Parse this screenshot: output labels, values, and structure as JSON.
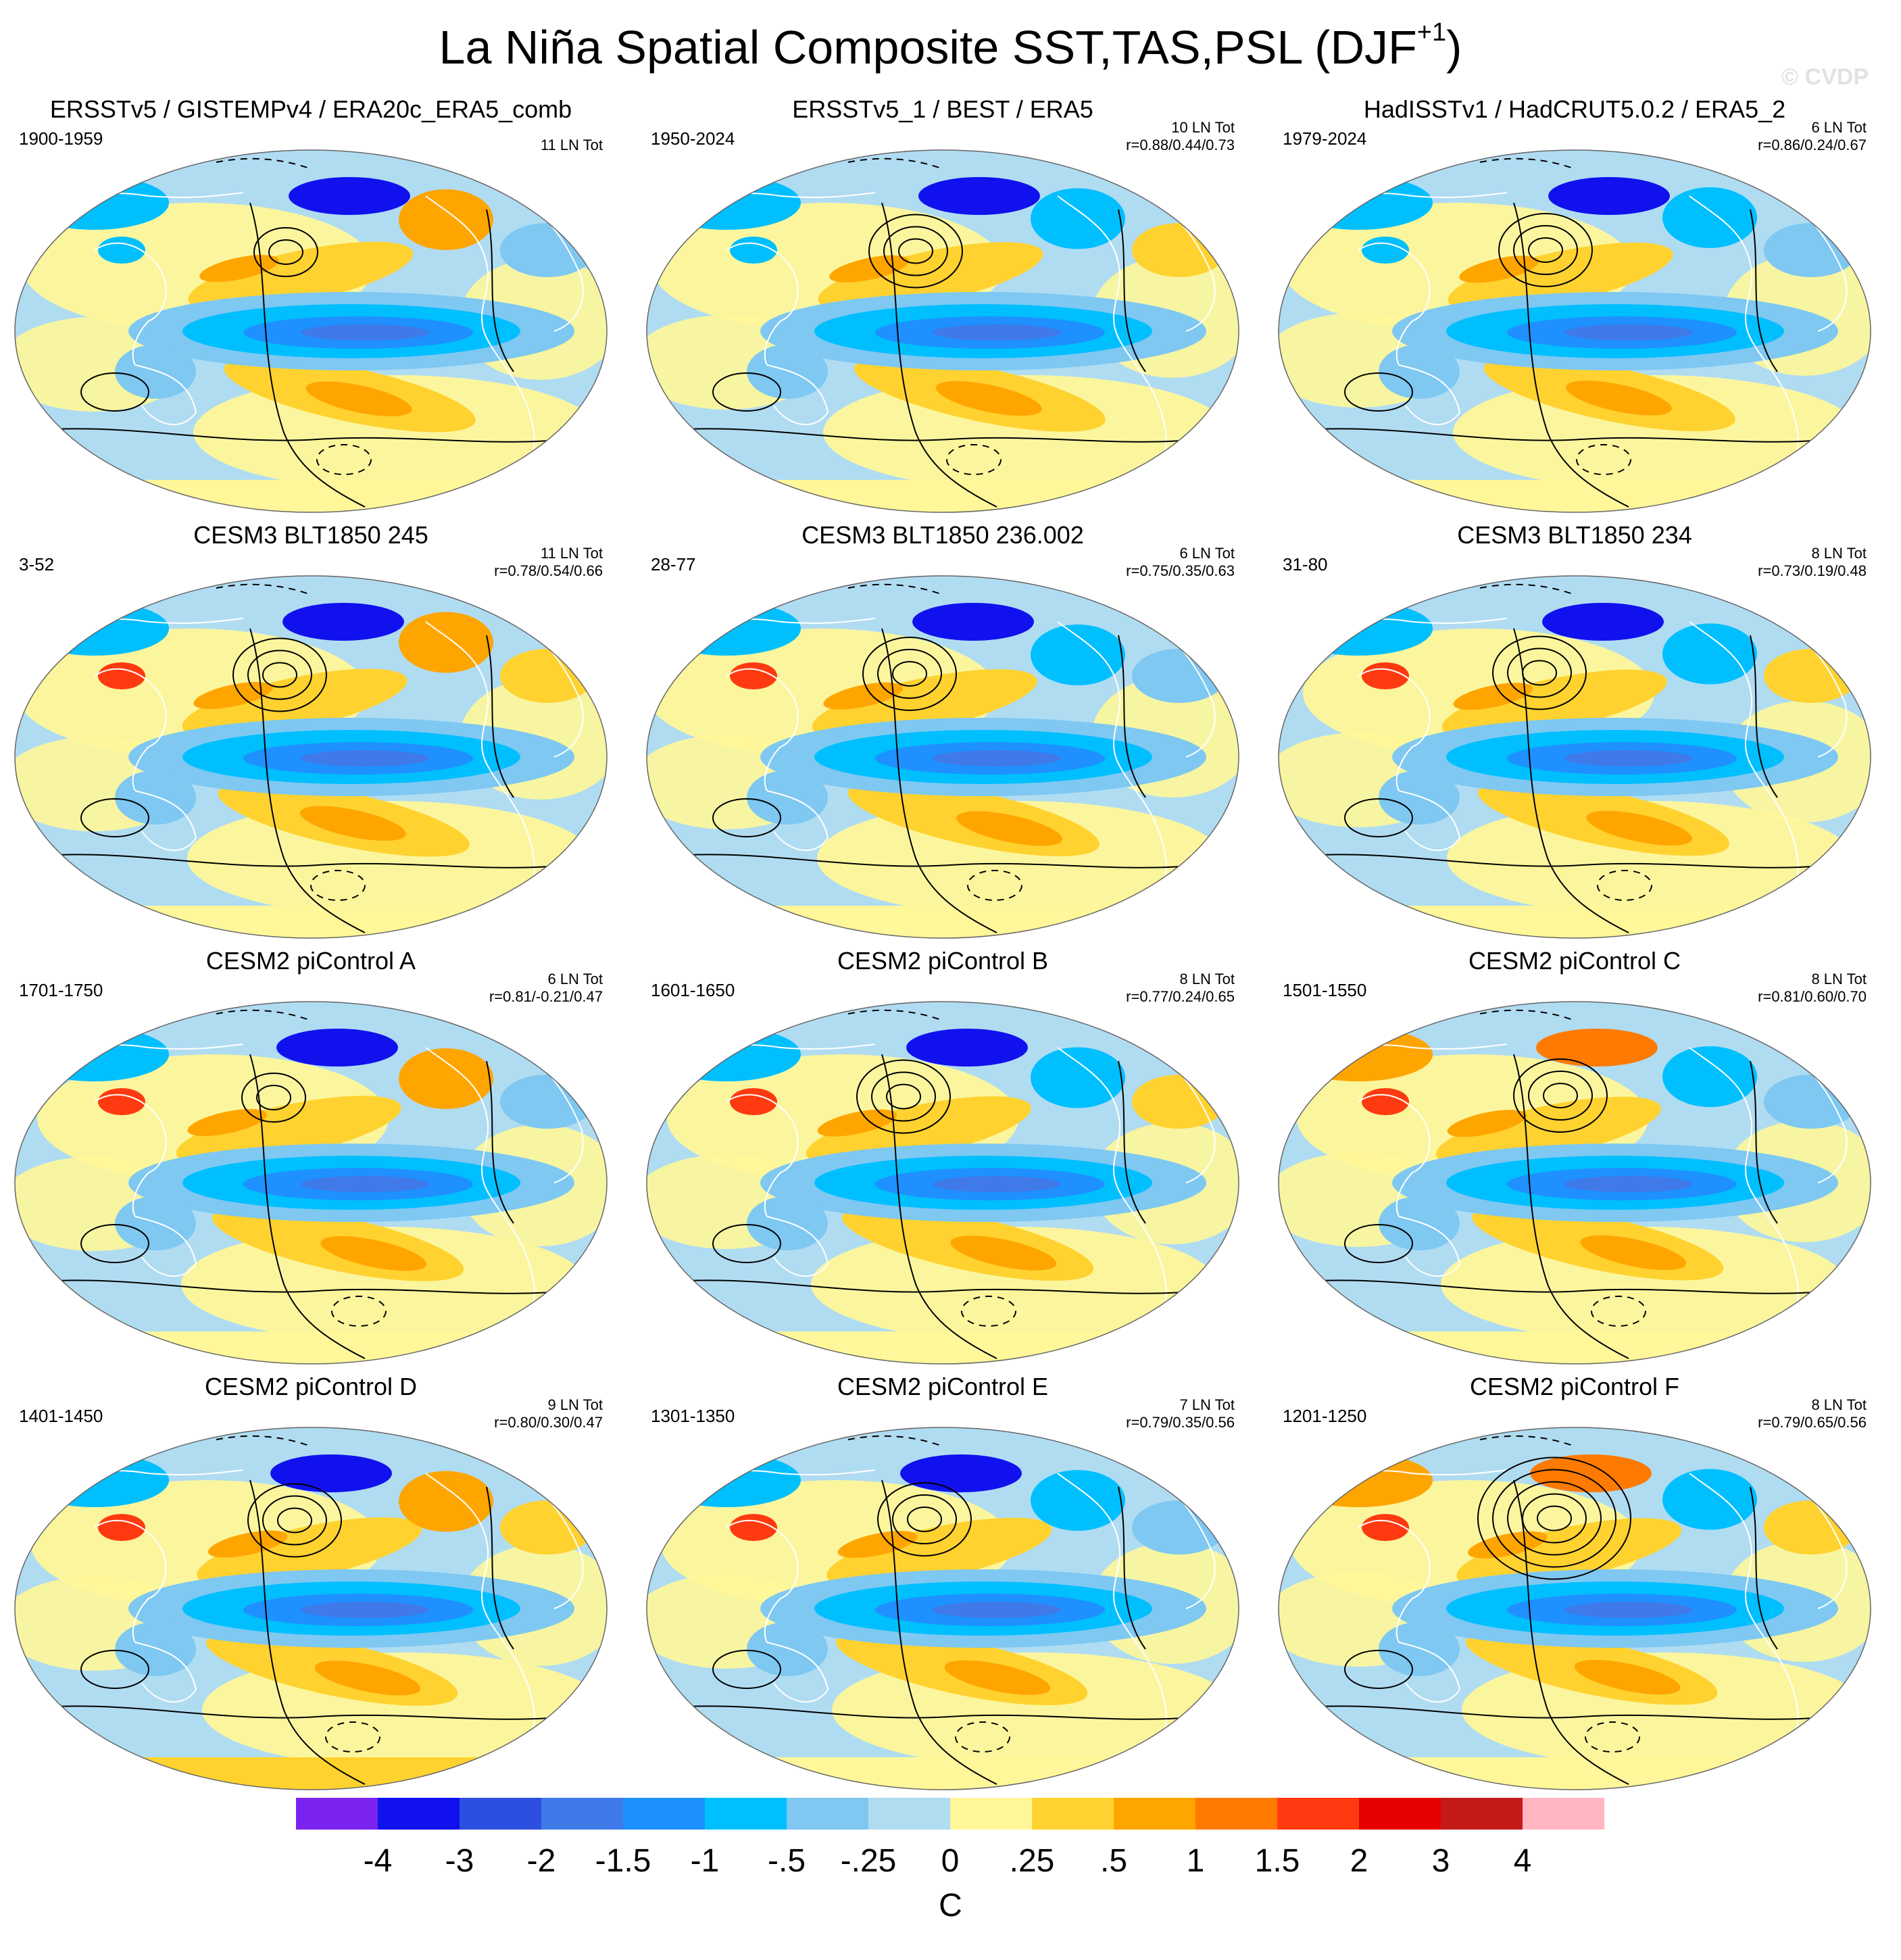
{
  "title": {
    "text": "La Niña Spatial Composite SST,TAS,PSL (DJF",
    "superscript": "+1",
    "close": ")"
  },
  "watermark": "© CVDP",
  "panels": [
    {
      "title": "ERSSTv5 / GISTEMPv4 / ERA20c_ERA5_comb",
      "years": "1900-1959",
      "count": "11 LN Tot",
      "corr": "",
      "variant": 0
    },
    {
      "title": "ERSSTv5_1 / BEST / ERA5",
      "years": "1950-2024",
      "count": "10 LN Tot",
      "corr": "r=0.88/0.44/0.73",
      "variant": 1
    },
    {
      "title": "HadISSTv1 / HadCRUT5.0.2 / ERA5_2",
      "years": "1979-2024",
      "count": "6 LN Tot",
      "corr": "r=0.86/0.24/0.67",
      "variant": 2
    },
    {
      "title": "CESM3 BLT1850 245",
      "years": "3-52",
      "count": "11 LN Tot",
      "corr": "r=0.78/0.54/0.66",
      "variant": 3
    },
    {
      "title": "CESM3 BLT1850 236.002",
      "years": "28-77",
      "count": "6 LN Tot",
      "corr": "r=0.75/0.35/0.63",
      "variant": 4
    },
    {
      "title": "CESM3 BLT1850 234",
      "years": "31-80",
      "count": "8 LN Tot",
      "corr": "r=0.73/0.19/0.48",
      "variant": 5
    },
    {
      "title": "CESM2 piControl A",
      "years": "1701-1750",
      "count": "6 LN Tot",
      "corr": "r=0.81/-0.21/0.47",
      "variant": 6
    },
    {
      "title": "CESM2 piControl B",
      "years": "1601-1650",
      "count": "8 LN Tot",
      "corr": "r=0.77/0.24/0.65",
      "variant": 7
    },
    {
      "title": "CESM2 piControl C",
      "years": "1501-1550",
      "count": "8 LN Tot",
      "corr": "r=0.81/0.60/0.70",
      "variant": 8
    },
    {
      "title": "CESM2 piControl D",
      "years": "1401-1450",
      "count": "9 LN Tot",
      "corr": "r=0.80/0.30/0.47",
      "variant": 9
    },
    {
      "title": "CESM2 piControl E",
      "years": "1301-1350",
      "count": "7 LN Tot",
      "corr": "r=0.79/0.35/0.56",
      "variant": 10
    },
    {
      "title": "CESM2 piControl F",
      "years": "1201-1250",
      "count": "8 LN Tot",
      "corr": "r=0.79/0.65/0.56",
      "variant": 11
    }
  ],
  "colorbar": {
    "labels": [
      "-4",
      "-3",
      "-2",
      "-1.5",
      "-1",
      "-.5",
      "-.25",
      "0",
      ".25",
      ".5",
      "1",
      "1.5",
      "2",
      "3",
      "4"
    ],
    "colors": [
      "#7a22ee",
      "#1111ee",
      "#2d4fe0",
      "#3f7ae8",
      "#1e90ff",
      "#00bfff",
      "#7ec8f2",
      "#b0dcf2",
      "#fff799",
      "#ffd230",
      "#ffa500",
      "#ff7a00",
      "#ff3a10",
      "#e60000",
      "#c41a1a",
      "#ffb6c1"
    ],
    "units": "C"
  },
  "map_style": {
    "ocean_base": "#b0dcf2",
    "land_outline": "#ffffff",
    "contour_color": "#000000"
  }
}
